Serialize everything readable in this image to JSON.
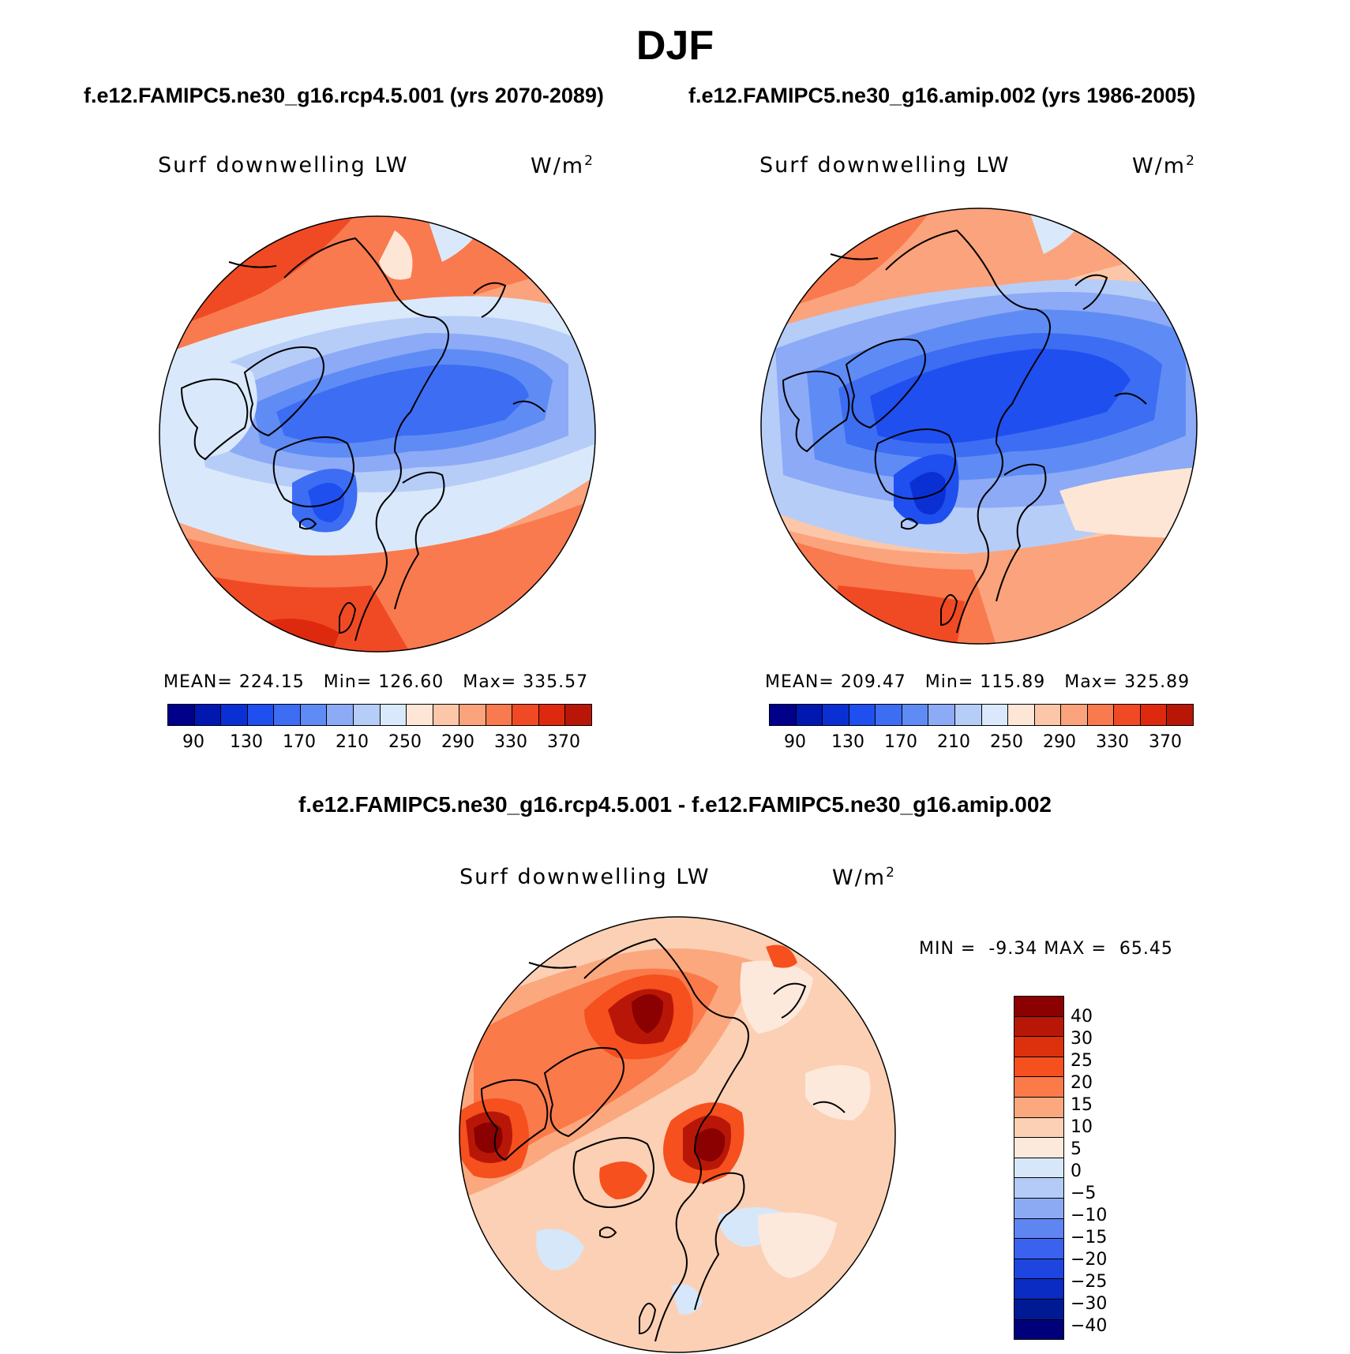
{
  "figure_title": "DJF",
  "panels": {
    "rcp": {
      "case_title": "f.e12.FAMIPC5.ne30_g16.rcp4.5.001 (yrs 2070-2089)",
      "variable": "Surf downwelling LW",
      "units": "W/m",
      "units_exp": "2",
      "mean_label": "MEAN=",
      "mean": "224.15",
      "min_label": "Min=",
      "min": "126.60",
      "max_label": "Max=",
      "max": "335.57"
    },
    "amip": {
      "case_title": "f.e12.FAMIPC5.ne30_g16.amip.002 (yrs 1986-2005)",
      "variable": "Surf downwelling LW",
      "units": "W/m",
      "units_exp": "2",
      "mean_label": "MEAN=",
      "mean": "209.47",
      "min_label": "Min=",
      "min": "115.89",
      "max_label": "Max=",
      "max": "325.89"
    },
    "diff": {
      "case_title": "f.e12.FAMIPC5.ne30_g16.rcp4.5.001 - f.e12.FAMIPC5.ne30_g16.amip.002",
      "variable": "Surf downwelling LW",
      "units": "W/m",
      "units_exp": "2",
      "min_label": "MIN =",
      "min": "-9.34",
      "max_label": "MAX =",
      "max": "65.45"
    }
  },
  "abs_colorbar": {
    "colors": [
      "#00008b",
      "#0018b0",
      "#0a30d4",
      "#1f4fef",
      "#3d6df2",
      "#5f8cf4",
      "#8caaf6",
      "#b6cdf8",
      "#d9e9fb",
      "#fde6d6",
      "#fcc7a8",
      "#fba37c",
      "#f97a4e",
      "#f04a24",
      "#dd2a0e",
      "#b81708",
      "#8b0000"
    ],
    "tick_labels": [
      "90",
      "130",
      "170",
      "210",
      "250",
      "290",
      "330",
      "370"
    ]
  },
  "diff_colorbar": {
    "colors": [
      "#8b0000",
      "#b81708",
      "#dd300c",
      "#f5501e",
      "#fa7a4a",
      "#fba87f",
      "#fcd0b4",
      "#fde9dc",
      "#d6e7fa",
      "#b3cbf6",
      "#8caaf4",
      "#5f85f2",
      "#3a62ee",
      "#1f45e0",
      "#0a2cc2",
      "#001a96",
      "#00007a"
    ],
    "tick_labels": [
      "40",
      "30",
      "25",
      "20",
      "15",
      "10",
      "5",
      "0",
      "−5",
      "−10",
      "−15",
      "−20",
      "−25",
      "−30",
      "−40"
    ]
  }
}
